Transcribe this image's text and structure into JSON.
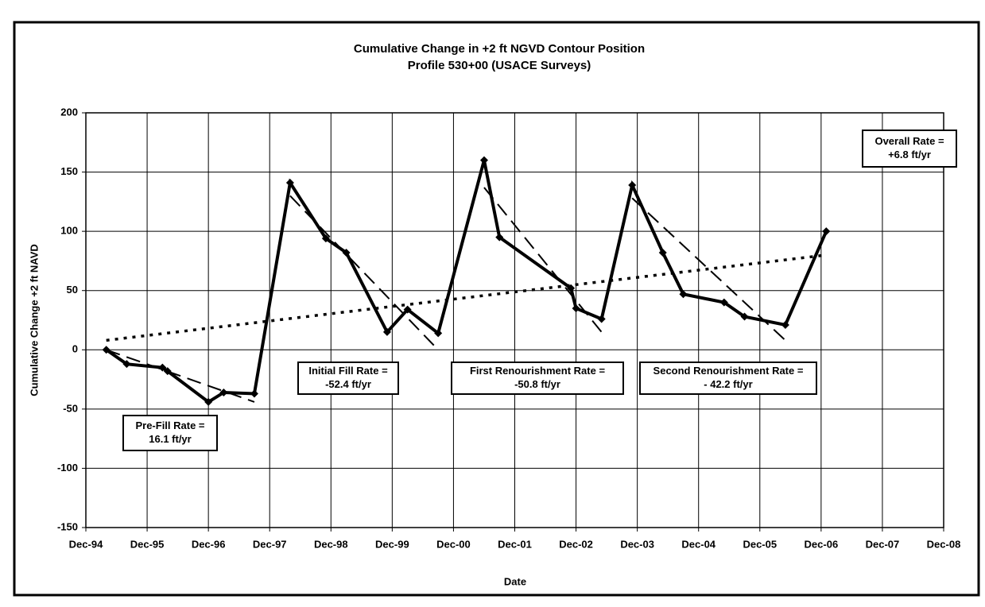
{
  "chart_data": {
    "type": "line",
    "title": "Cumulative Change in +2 ft NGVD Contour Position",
    "subtitle": "Profile 530+00 (USACE Surveys)",
    "x_label": "Date",
    "y_label": "Cumulative Change +2 ft NAVD",
    "xlim": [
      "1994-12",
      "2008-12"
    ],
    "xticks": [
      {
        "value": "1994-12",
        "label": "Dec-94"
      },
      {
        "value": "1995-12",
        "label": "Dec-95"
      },
      {
        "value": "1996-12",
        "label": "Dec-96"
      },
      {
        "value": "1997-12",
        "label": "Dec-97"
      },
      {
        "value": "1998-12",
        "label": "Dec-98"
      },
      {
        "value": "1999-12",
        "label": "Dec-99"
      },
      {
        "value": "2000-12",
        "label": "Dec-00"
      },
      {
        "value": "2001-12",
        "label": "Dec-01"
      },
      {
        "value": "2002-12",
        "label": "Dec-02"
      },
      {
        "value": "2003-12",
        "label": "Dec-03"
      },
      {
        "value": "2004-12",
        "label": "Dec-04"
      },
      {
        "value": "2005-12",
        "label": "Dec-05"
      },
      {
        "value": "2006-12",
        "label": "Dec-06"
      },
      {
        "value": "2007-12",
        "label": "Dec-07"
      },
      {
        "value": "2008-12",
        "label": "Dec-08"
      }
    ],
    "ylim": [
      -150,
      200
    ],
    "yticks": [
      -150,
      -100,
      -50,
      0,
      50,
      100,
      150,
      200
    ],
    "grid": true,
    "series": [
      {
        "color": "#000000",
        "style": "solid",
        "markers": true,
        "x": [
          "1995-04",
          "1995-08",
          "1996-03",
          "1996-04",
          "1996-12",
          "1997-03",
          "1997-09",
          "1998-04",
          "1998-11",
          "1999-03",
          "1999-11",
          "2000-03",
          "2000-09",
          "2001-06",
          "2001-09",
          "2002-11",
          "2002-12",
          "2003-05",
          "2003-11",
          "2004-05",
          "2004-09",
          "2005-05",
          "2005-09",
          "2006-05",
          "2007-01"
        ],
        "values": [
          0,
          -12,
          -15,
          -18,
          -44,
          -36,
          -37,
          141,
          94,
          82,
          15,
          34,
          14,
          160,
          95,
          52,
          35,
          26,
          139,
          82,
          47,
          40,
          28,
          21,
          100
        ]
      },
      {
        "color": "#000000",
        "style": "dashed",
        "x": [
          "1995-04",
          "1997-09"
        ],
        "values": [
          0,
          -44
        ]
      },
      {
        "color": "#000000",
        "style": "dashed",
        "x": [
          "1998-04",
          "2000-09"
        ],
        "values": [
          130,
          0
        ]
      },
      {
        "color": "#000000",
        "style": "dashed",
        "x": [
          "2001-06",
          "2003-05"
        ],
        "values": [
          137,
          15
        ]
      },
      {
        "color": "#000000",
        "style": "dashed",
        "x": [
          "2003-11",
          "2006-05"
        ],
        "values": [
          128,
          8
        ]
      },
      {
        "color": "#000000",
        "style": "dotted",
        "x": [
          "1995-04",
          "2007-01"
        ],
        "values": [
          8,
          80
        ]
      }
    ],
    "annotations": [
      {
        "lines": [
          "Pre-Fill Rate =",
          "16.1 ft/yr"
        ]
      },
      {
        "lines": [
          "Initial Fill Rate =",
          "-52.4 ft/yr"
        ]
      },
      {
        "lines": [
          "First Renourishment Rate =",
          "-50.8 ft/yr"
        ]
      },
      {
        "lines": [
          "Second Renourishment Rate =",
          "- 42.2 ft/yr"
        ]
      },
      {
        "lines": [
          "Overall Rate =",
          "+6.8 ft/yr"
        ]
      }
    ]
  }
}
